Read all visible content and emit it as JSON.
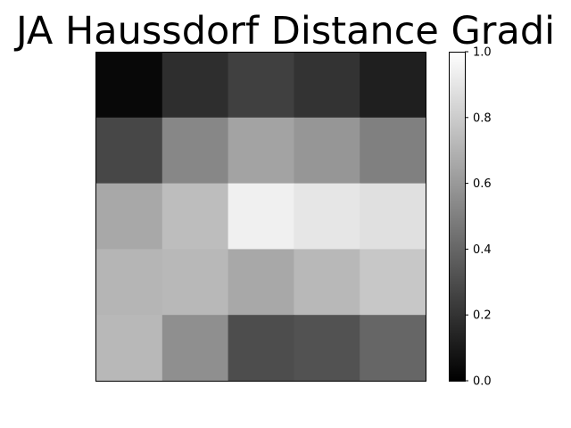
{
  "chart_data": {
    "type": "heatmap",
    "title": "JA Haussdorf Distance Gradi",
    "colormap": "gray",
    "vmin": 0.0,
    "vmax": 1.0,
    "rows": 5,
    "cols": 5,
    "values": [
      [
        0.03,
        0.18,
        0.25,
        0.2,
        0.12
      ],
      [
        0.28,
        0.53,
        0.64,
        0.59,
        0.5
      ],
      [
        0.66,
        0.74,
        0.94,
        0.9,
        0.88
      ],
      [
        0.71,
        0.72,
        0.66,
        0.72,
        0.78
      ],
      [
        0.72,
        0.56,
        0.3,
        0.32,
        0.4
      ]
    ],
    "colorbar": {
      "ticks": [
        0.0,
        0.2,
        0.4,
        0.6,
        0.8,
        1.0
      ],
      "tick_labels": [
        "0.0",
        "0.2",
        "0.4",
        "0.6",
        "0.8",
        "1.0"
      ]
    },
    "xticks_visible": false,
    "yticks_visible": false
  }
}
